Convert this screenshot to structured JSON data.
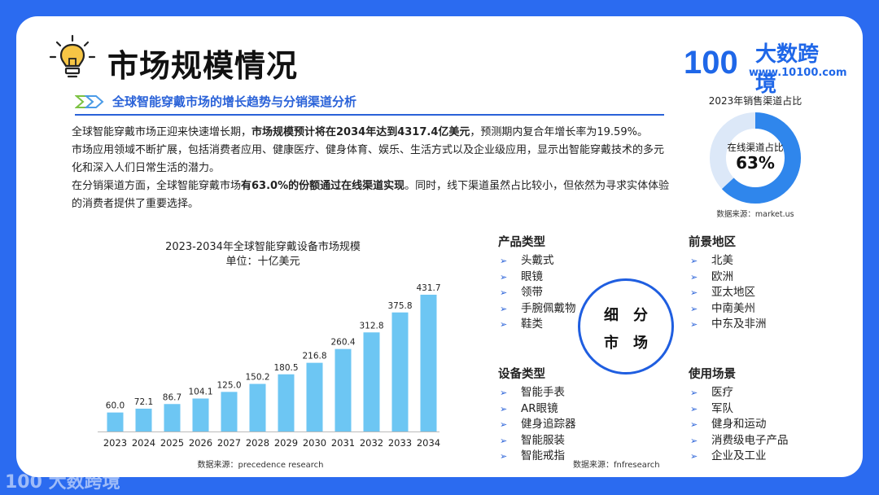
{
  "header": {
    "title": "市场规模情况",
    "brand_name": "大数跨境",
    "brand_url": "www.10100.com",
    "brand_mark": "100"
  },
  "section": {
    "heading": "全球智能穿戴市场的增长趋势与分销渠道分析"
  },
  "intro": {
    "p1_a": "全球智能穿戴市场正迎来快速增长期，",
    "p1_b": "市场规模预计将在2034年达到4317.4亿美元",
    "p1_c": "，预测期内复合年增长率为19.59%。",
    "p2": "市场应用领域不断扩展，包括消费者应用、健康医疗、健身体育、娱乐、生活方式以及企业级应用，显示出智能穿戴技术的多元化和深入人们日常生活的潜力。",
    "p3_a": "在分销渠道方面，全球智能穿戴市场",
    "p3_b": "有63.0%的份额通过在线渠道实现",
    "p3_c": "。同时，线下渠道虽然占比较小，但依然为寻求实体体验的消费者提供了重要选择。"
  },
  "donut": {
    "title": "2023年销售渠道占比",
    "label": "在线渠道占比",
    "value_text": "63%",
    "source": "数据来源：market.us",
    "colors": {
      "main": "#2f86ec",
      "rest": "#dce8f8"
    }
  },
  "chart_data": {
    "type": "bar",
    "title": "2023-2034年全球智能穿戴设备市场规模",
    "subtitle": "单位：十亿美元",
    "categories": [
      "2023",
      "2024",
      "2025",
      "2026",
      "2027",
      "2028",
      "2029",
      "2030",
      "2031",
      "2032",
      "2033",
      "2034"
    ],
    "values": [
      60.0,
      72.1,
      86.7,
      104.1,
      125.0,
      150.2,
      180.5,
      216.8,
      260.4,
      312.8,
      375.8,
      431.7
    ],
    "value_labels": [
      "60.0",
      "72.1",
      "86.7",
      "104.1",
      "125.0",
      "150.2",
      "180.5",
      "216.8",
      "260.4",
      "312.8",
      "375.8",
      "431.7"
    ],
    "ylim": [
      0,
      431.7
    ],
    "grid": false,
    "bar_color": "#6dc6f3",
    "source": "数据来源：precedence research"
  },
  "segments": {
    "center_line1": "细分",
    "center_line2": "市场",
    "source": "数据来源：fnfresearch",
    "arrow": "➢",
    "product": {
      "heading": "产品类型",
      "items": [
        "头戴式",
        "眼镜",
        "领带",
        "手腕佩戴物",
        "鞋类"
      ]
    },
    "region": {
      "heading": "前景地区",
      "items": [
        "北美",
        "欧洲",
        "亚太地区",
        "中南美州",
        "中东及非洲"
      ]
    },
    "device": {
      "heading": "设备类型",
      "items": [
        "智能手表",
        "AR眼镜",
        "健身追踪器",
        "智能服装",
        "智能戒指"
      ]
    },
    "scene": {
      "heading": "使用场景",
      "items": [
        "医疗",
        "军队",
        "健身和运动",
        "消费级电子产品",
        "企业及工业"
      ]
    }
  },
  "watermark": {
    "text": "大数跨境",
    "mark": "100"
  }
}
